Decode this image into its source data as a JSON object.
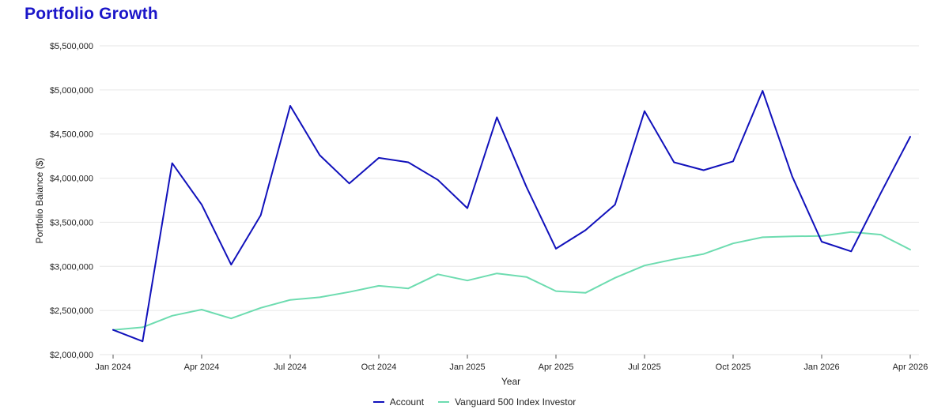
{
  "page": {
    "title": "Portfolio Growth"
  },
  "colors": {
    "account": "#1111bb",
    "benchmark": "#6ddcb0",
    "grid": "#e6e6e6",
    "title": "#1b16c9"
  },
  "chart_data": {
    "type": "line",
    "title": "Portfolio Growth",
    "xlabel": "Year",
    "ylabel": "Portfolio Balance ($)",
    "ylim": [
      2000000,
      5500000
    ],
    "yticks": [
      2000000,
      2500000,
      3000000,
      3500000,
      4000000,
      4500000,
      5000000,
      5500000
    ],
    "ytick_labels": [
      "$2,000,000",
      "$2,500,000",
      "$3,000,000",
      "$3,500,000",
      "$4,000,000",
      "$4,500,000",
      "$5,000,000",
      "$5,500,000"
    ],
    "xtick_labels": [
      "Jan 2024",
      "Apr 2024",
      "Jul 2024",
      "Oct 2024",
      "Jan 2025",
      "Apr 2025",
      "Jul 2025",
      "Oct 2025",
      "Jan 2026",
      "Apr 2026"
    ],
    "x": [
      "2024-01",
      "2024-02",
      "2024-03",
      "2024-04",
      "2024-05",
      "2024-06",
      "2024-07",
      "2024-08",
      "2024-09",
      "2024-10",
      "2024-11",
      "2024-12",
      "2025-01",
      "2025-02",
      "2025-03",
      "2025-04",
      "2025-05",
      "2025-06",
      "2025-07",
      "2025-08",
      "2025-09",
      "2025-10",
      "2025-11",
      "2025-12",
      "2026-01",
      "2026-02",
      "2026-03",
      "2026-04"
    ],
    "grid": true,
    "legend": "bottom-center",
    "series": [
      {
        "name": "Account",
        "values": [
          2280000,
          2150000,
          4170000,
          3700000,
          3020000,
          3580000,
          4820000,
          4260000,
          3940000,
          4230000,
          4180000,
          3980000,
          3660000,
          4690000,
          3900000,
          3200000,
          3410000,
          3700000,
          4760000,
          4180000,
          4090000,
          4190000,
          4990000,
          4020000,
          3280000,
          3170000,
          3830000,
          4470000
        ]
      },
      {
        "name": "Vanguard 500 Index Investor",
        "values": [
          2280000,
          2310000,
          2440000,
          2510000,
          2410000,
          2530000,
          2620000,
          2650000,
          2710000,
          2780000,
          2750000,
          2910000,
          2840000,
          2920000,
          2880000,
          2720000,
          2700000,
          2870000,
          3010000,
          3080000,
          3140000,
          3260000,
          3330000,
          3340000,
          3345000,
          3390000,
          3360000,
          3190000
        ]
      }
    ]
  }
}
